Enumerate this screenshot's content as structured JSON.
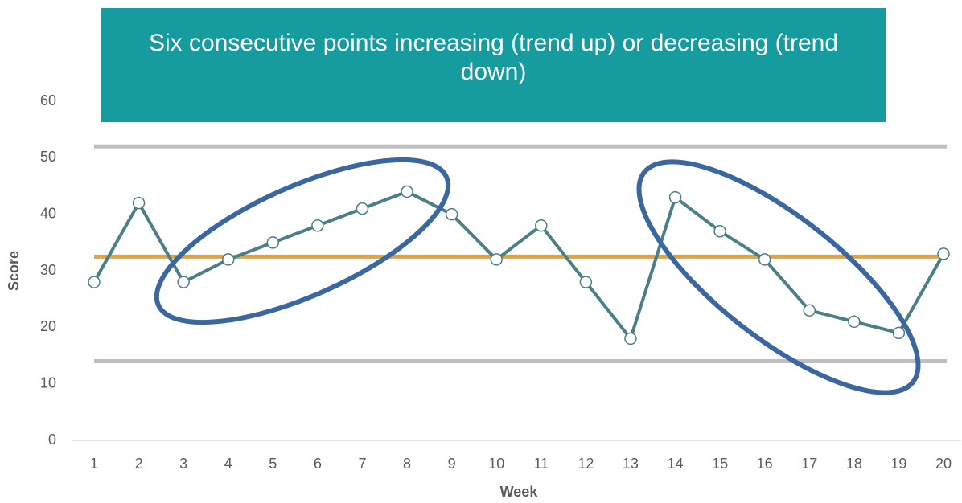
{
  "chart_data": {
    "type": "line",
    "title": "Six consecutive points increasing (trend up) or decreasing (trend down)",
    "x_label": "Week",
    "y_label": "Score",
    "categories": [
      "1",
      "2",
      "3",
      "4",
      "5",
      "6",
      "7",
      "8",
      "9",
      "10",
      "11",
      "12",
      "13",
      "14",
      "15",
      "16",
      "17",
      "18",
      "19",
      "20"
    ],
    "series": [
      {
        "color": "#4a7f86",
        "values": [
          28,
          42,
          28,
          32,
          35,
          38,
          41,
          44,
          40,
          32,
          38,
          28,
          18,
          43,
          37,
          32,
          23,
          21,
          19,
          33
        ]
      }
    ],
    "reference_lines": [
      {
        "value": 52,
        "color": "#bfbfbf"
      },
      {
        "value": 32.5,
        "color": "#dca444"
      },
      {
        "value": 14,
        "color": "#bfbfbf"
      }
    ],
    "ylim": [
      0,
      60
    ],
    "yticks": [
      0,
      10,
      20,
      30,
      40,
      50,
      60
    ],
    "grid": false
  }
}
